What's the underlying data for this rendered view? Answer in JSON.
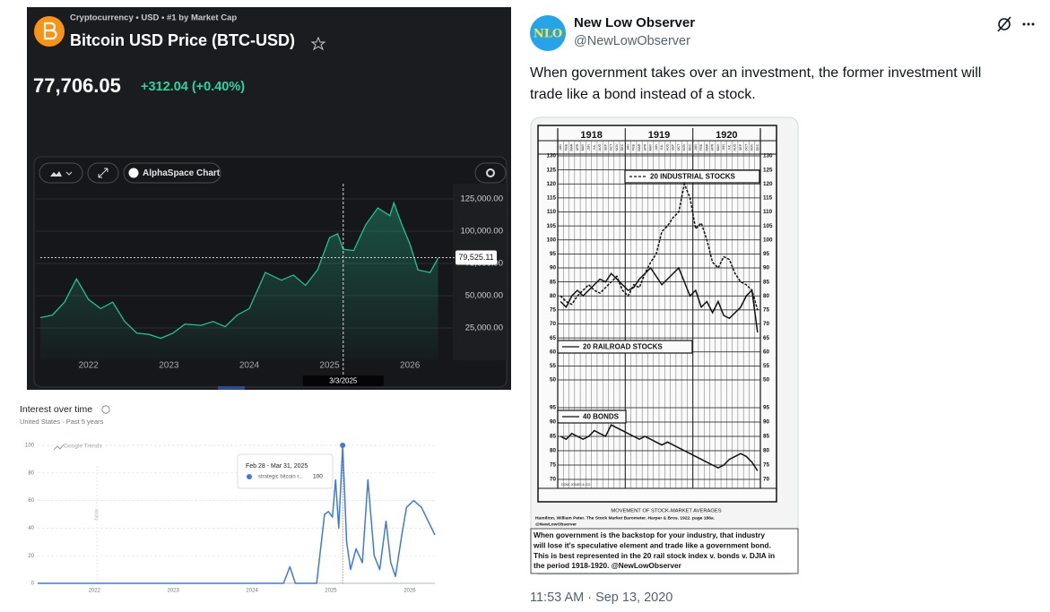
{
  "bitcoin": {
    "breadcrumb": "Cryptocurrency • USD • #1 by Market Cap",
    "title": "Bitcoin USD Price (BTC-USD)",
    "price": "77,706.05",
    "change": "+312.04 (+0.40%)",
    "chart_button": "AlphaSpace Chart"
  },
  "tweet": {
    "avatar_text": "NLO",
    "name": "New Low Observer",
    "handle": "@NewLowObserver",
    "text_lines": [
      "When government takes over an investment, the former investment will",
      "trade like a bond instead of a stock."
    ],
    "timestamp": "11:53 AM · Sep 13, 2020"
  },
  "chart_data": [
    {
      "type": "line",
      "color": "#22c08f",
      "x": [
        2021.4,
        2021.55,
        2021.7,
        2021.85,
        2022.0,
        2022.15,
        2022.3,
        2022.45,
        2022.6,
        2022.75,
        2022.9,
        2023.05,
        2023.2,
        2023.4,
        2023.55,
        2023.7,
        2023.85,
        2024.0,
        2024.2,
        2024.4,
        2024.55,
        2024.7,
        2024.85,
        2025.0,
        2025.1,
        2025.17,
        2025.3,
        2025.45,
        2025.6,
        2025.75,
        2025.8,
        2025.9,
        2026.0,
        2026.1,
        2026.25,
        2026.35
      ],
      "values": [
        33000,
        35000,
        45000,
        63000,
        47000,
        40000,
        45000,
        30000,
        21000,
        20000,
        17000,
        21000,
        28000,
        27000,
        30000,
        26000,
        35000,
        40000,
        68000,
        62000,
        66000,
        58000,
        70000,
        95000,
        98000,
        86000,
        85000,
        105000,
        118000,
        112000,
        122000,
        105000,
        90000,
        70000,
        68000,
        79000
      ],
      "xlim": [
        2021.4,
        2026.4
      ],
      "xticks": [
        2022,
        2023,
        2024,
        2025,
        2026
      ],
      "ylim": [
        0,
        137500
      ],
      "yticks": [
        {
          "value": 25000,
          "label": "25,000.00"
        },
        {
          "value": 50000,
          "label": "50,000.00"
        },
        {
          "value": 75000,
          "label": "75,000.00"
        },
        {
          "value": 100000,
          "label": "100,000.00"
        },
        {
          "value": 125000,
          "label": "125,000.00"
        }
      ],
      "grid": true,
      "last_value": {
        "value": 79525.11,
        "label": "79,525.11"
      },
      "crosshair": {
        "x": 2025.17,
        "label": "3/3/2025"
      }
    },
    {
      "type": "line",
      "title": "Interest over time",
      "subtitle": "United States · Past 5 years",
      "source": "Google Trends",
      "note": "Note",
      "tooltip": "Feb 28 - Mar 31, 2025",
      "x": [
        2021.28,
        2024.4,
        2024.48,
        2024.55,
        2024.82,
        2024.92,
        2024.97,
        2025.02,
        2025.06,
        2025.1,
        2025.15,
        2025.2,
        2025.25,
        2025.32,
        2025.4,
        2025.47,
        2025.55,
        2025.62,
        2025.7,
        2025.76,
        2025.82,
        2025.9,
        2025.96,
        2026.05,
        2026.15,
        2026.32
      ],
      "series": [
        {
          "name": "strategic bitcoin r...",
          "color": "#3f7ad9",
          "values": [
            0,
            0,
            12,
            0,
            0,
            50,
            52,
            48,
            75,
            40,
            100,
            30,
            10,
            25,
            15,
            75,
            20,
            10,
            45,
            15,
            5,
            35,
            55,
            60,
            55,
            35
          ]
        }
      ],
      "xlim": [
        2021.28,
        2026.32
      ],
      "xticks": [
        2022,
        2023,
        2024,
        2025,
        2026
      ],
      "ylim": [
        0,
        100
      ],
      "yticks": [
        0,
        20,
        40,
        60,
        80,
        100
      ],
      "grid": true
    },
    {
      "type": "line",
      "title": "MOVEMENT OF STOCK-MARKET AVERAGES",
      "years": [
        "1918",
        "1919",
        "1920"
      ],
      "categories": [
        "JAN",
        "FEB",
        "MAR",
        "APR",
        "MAY",
        "JUN",
        "JUL",
        "AUG",
        "SEP",
        "OCT",
        "NOV",
        "DEC",
        "JAN",
        "FEB",
        "MAR",
        "APR",
        "MAY",
        "JUN",
        "JUL",
        "AUG",
        "SEP",
        "OCT",
        "NOV",
        "DEC",
        "JAN",
        "FEB",
        "MAR",
        "APR",
        "MAY",
        "JUN",
        "JUL",
        "AUG",
        "SEP",
        "OCT",
        "NOV",
        "DEC"
      ],
      "series": [
        {
          "name": "20 INDUSTRIAL STOCKS",
          "color": "#111111",
          "dash": true,
          "values": [
            80,
            78,
            77,
            80,
            82,
            84,
            82,
            81,
            83,
            85,
            87,
            82,
            80,
            84,
            83,
            88,
            92,
            95,
            103,
            105,
            108,
            110,
            120,
            115,
            104,
            106,
            100,
            92,
            90,
            94,
            93,
            88,
            85,
            84,
            82,
            75
          ]
        },
        {
          "name": "20 RAILROAD STOCKS",
          "color": "#111111",
          "dash": false,
          "values": [
            78,
            76,
            80,
            82,
            80,
            82,
            84,
            86,
            85,
            88,
            86,
            84,
            82,
            83,
            86,
            88,
            90,
            87,
            84,
            86,
            88,
            90,
            85,
            80,
            82,
            76,
            78,
            74,
            78,
            73,
            72,
            74,
            76,
            80,
            82,
            67
          ]
        },
        {
          "name": "40 BONDS",
          "color": "#111111",
          "dash": false,
          "axis": "y2",
          "values": [
            85,
            84,
            86,
            85,
            84,
            85,
            87,
            86,
            85,
            89,
            88,
            87,
            86,
            85,
            84,
            85,
            84,
            83,
            82,
            83,
            82,
            81,
            80,
            79,
            78,
            77,
            76,
            75,
            74,
            75,
            77,
            78,
            79,
            78,
            76,
            73
          ]
        }
      ],
      "ylim": [
        50,
        130
      ],
      "yticks": [
        130,
        125,
        120,
        115,
        110,
        105,
        100,
        95,
        90,
        85,
        80,
        75,
        70,
        65,
        60,
        55,
        50
      ],
      "y2lim": [
        70,
        95
      ],
      "y2ticks": [
        95,
        90,
        85,
        80,
        75,
        70
      ],
      "grid": true,
      "credit": "DOW, JONES & CO.",
      "source": "Hamilton, William Peter. The Stock Market Barometer. Harper & Bros. 1922. page 186a.",
      "handle": "@NewLowObserver",
      "caption_lines": [
        "When government is the backstop for your industry, that industry",
        "will lose it's speculative element and trade like a government bond.",
        "This is best represented in the 20 rail stock index v. bonds v. DJIA in",
        "the period 1918-1920. @NewLowObserver"
      ]
    }
  ]
}
